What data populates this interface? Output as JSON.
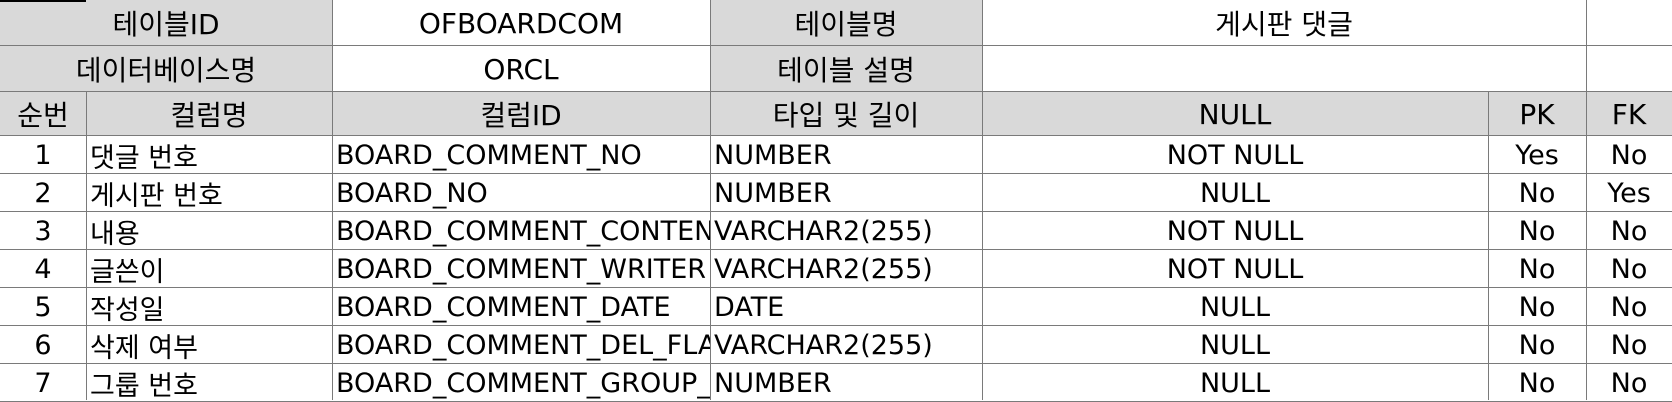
{
  "meta": {
    "table_id_label": "테이블ID",
    "table_id_value": "OFBOARDCOM",
    "table_name_label": "테이블명",
    "table_name_value": "게시판 댓글",
    "database_name_label": "데이터베이스명",
    "database_name_value": "ORCL",
    "table_desc_label": "테이블 설명",
    "table_desc_value": ""
  },
  "columns": {
    "seq": "순번",
    "column_name": "컬럼명",
    "column_id": "컬럼ID",
    "type_length": "타입 및 길이",
    "nullable": "NULL",
    "pk": "PK",
    "fk": "FK"
  },
  "rows": [
    {
      "seq": "1",
      "name": "댓글 번호",
      "id": "BOARD_COMMENT_NO",
      "type": "NUMBER",
      "nullable": "NOT NULL",
      "pk": "Yes",
      "fk": "No"
    },
    {
      "seq": "2",
      "name": "게시판 번호",
      "id": "BOARD_NO",
      "type": "NUMBER",
      "nullable": "NULL",
      "pk": "No",
      "fk": "Yes"
    },
    {
      "seq": "3",
      "name": "내용",
      "id": "BOARD_COMMENT_CONTENT",
      "type": "VARCHAR2(255)",
      "nullable": "NOT NULL",
      "pk": "No",
      "fk": "No"
    },
    {
      "seq": "4",
      "name": "글쓴이",
      "id": "BOARD_COMMENT_WRITER",
      "type": "VARCHAR2(255)",
      "nullable": "NOT NULL",
      "pk": "No",
      "fk": "No"
    },
    {
      "seq": "5",
      "name": "작성일",
      "id": "BOARD_COMMENT_DATE",
      "type": "DATE",
      "nullable": "NULL",
      "pk": "No",
      "fk": "No"
    },
    {
      "seq": "6",
      "name": "삭제 여부",
      "id": "BOARD_COMMENT_DEL_FLAG",
      "type": "VARCHAR2(255)",
      "nullable": "NULL",
      "pk": "No",
      "fk": "No"
    },
    {
      "seq": "7",
      "name": "그룹 번호",
      "id": "BOARD_COMMENT_GROUP_NO",
      "type": "NUMBER",
      "nullable": "NULL",
      "pk": "No",
      "fk": "No"
    }
  ]
}
